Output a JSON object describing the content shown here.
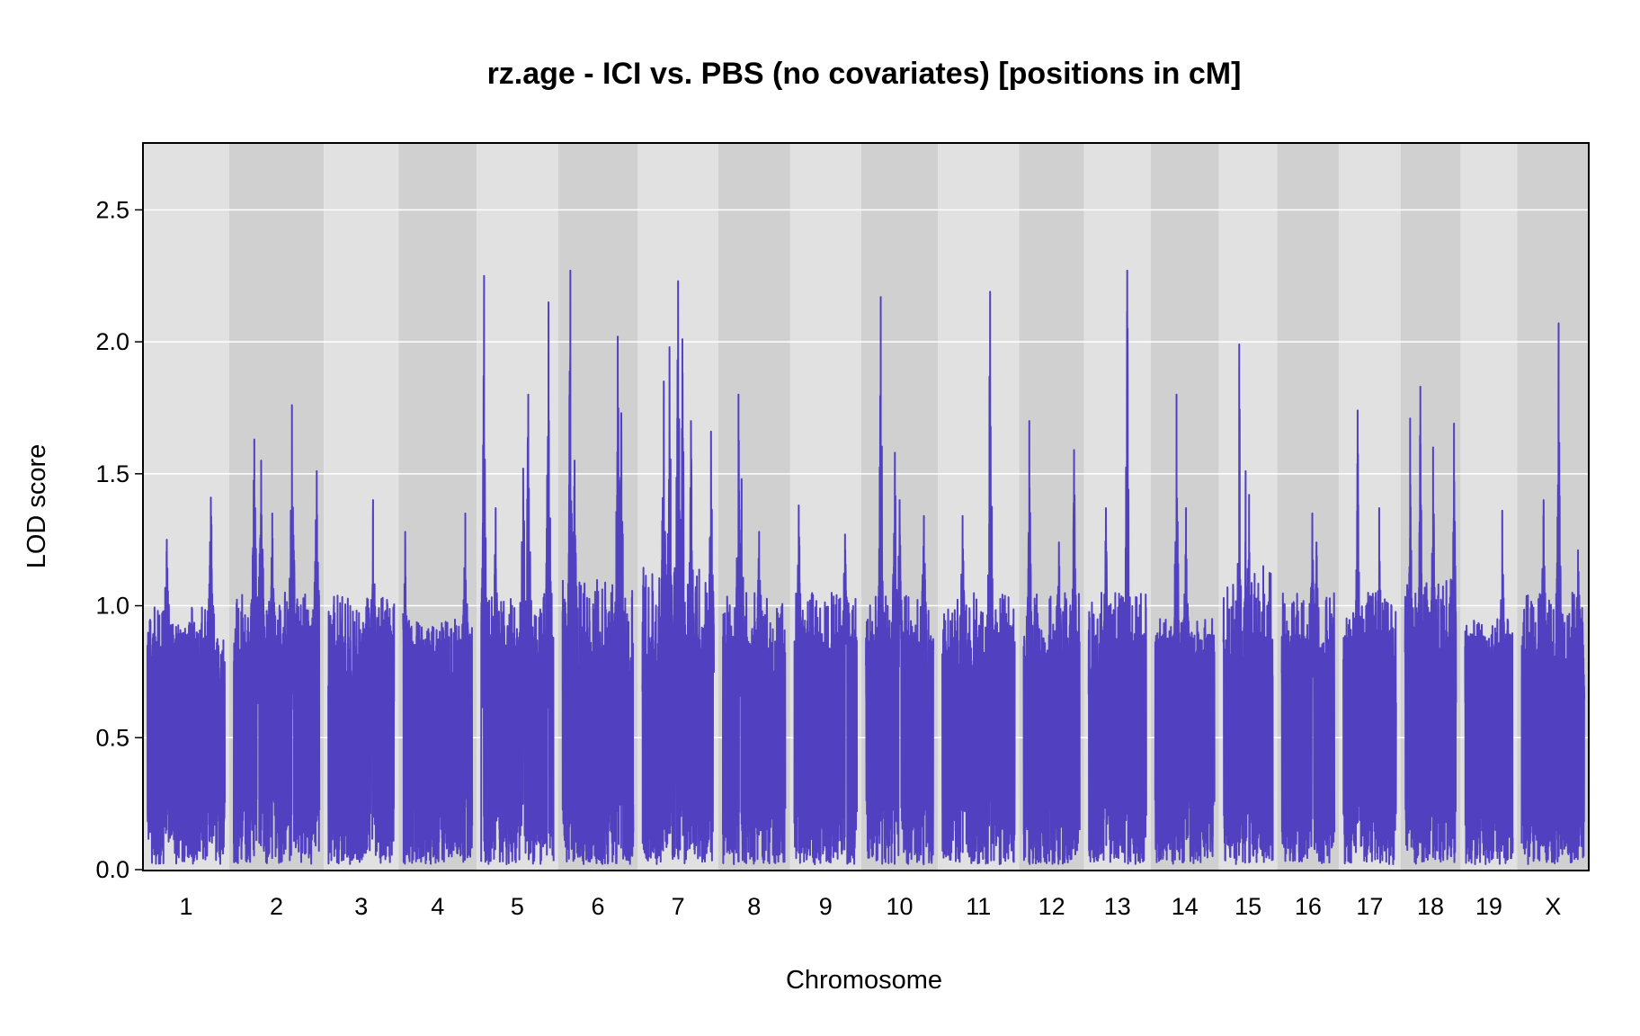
{
  "chart_data": {
    "type": "line",
    "title": "rz.age - ICI vs. PBS (no covariates) [positions in cM]",
    "xlabel": "Chromosome",
    "ylabel": "LOD score",
    "ylim": [
      0,
      2.75
    ],
    "yticks": [
      "0.0",
      "0.5",
      "1.0",
      "1.5",
      "2.0",
      "2.5"
    ],
    "grid": true,
    "legend": "none",
    "colors": {
      "line": "#5140c0",
      "band_light": "#e1e1e1",
      "band_dark": "#d0d0d0",
      "grid": "#ffffff",
      "frame": "#000000"
    },
    "chromosomes": [
      {
        "label": "1",
        "length_cM": 94,
        "baseline": 0.9,
        "peaks": [
          [
            0.25,
            1.25
          ],
          [
            0.82,
            1.41
          ]
        ]
      },
      {
        "label": "2",
        "length_cM": 104,
        "baseline": 0.95,
        "peaks": [
          [
            0.24,
            1.63
          ],
          [
            0.32,
            1.55
          ],
          [
            0.45,
            1.35
          ],
          [
            0.68,
            1.76
          ],
          [
            0.97,
            1.51
          ]
        ]
      },
      {
        "label": "3",
        "length_cM": 80,
        "baseline": 0.95,
        "peaks": [
          [
            0.68,
            1.4
          ]
        ]
      },
      {
        "label": "4",
        "length_cM": 84,
        "baseline": 0.85,
        "peaks": [
          [
            0.03,
            1.28
          ],
          [
            0.9,
            1.35
          ]
        ]
      },
      {
        "label": "5",
        "length_cM": 88,
        "baseline": 0.95,
        "peaks": [
          [
            0.04,
            2.25
          ],
          [
            0.2,
            1.37
          ],
          [
            0.58,
            1.52
          ],
          [
            0.65,
            1.8
          ],
          [
            0.93,
            2.15
          ]
        ]
      },
      {
        "label": "6",
        "length_cM": 86,
        "baseline": 1.0,
        "peaks": [
          [
            0.11,
            2.27
          ],
          [
            0.17,
            1.55
          ],
          [
            0.78,
            2.02
          ],
          [
            0.83,
            1.73
          ]
        ]
      },
      {
        "label": "7",
        "length_cM": 87,
        "baseline": 1.05,
        "peaks": [
          [
            0.3,
            1.85
          ],
          [
            0.38,
            1.98
          ],
          [
            0.5,
            2.23
          ],
          [
            0.56,
            2.01
          ],
          [
            0.68,
            1.7
          ],
          [
            0.96,
            1.66
          ]
        ]
      },
      {
        "label": "8",
        "length_cM": 76,
        "baseline": 0.95,
        "peaks": [
          [
            0.25,
            1.8
          ],
          [
            0.3,
            1.48
          ],
          [
            0.58,
            1.28
          ]
        ]
      },
      {
        "label": "9",
        "length_cM": 76,
        "baseline": 0.95,
        "peaks": [
          [
            0.07,
            1.38
          ],
          [
            0.81,
            1.27
          ]
        ]
      },
      {
        "label": "10",
        "length_cM": 82,
        "baseline": 0.95,
        "peaks": [
          [
            0.22,
            2.17
          ],
          [
            0.43,
            1.58
          ],
          [
            0.5,
            1.4
          ],
          [
            0.86,
            1.34
          ]
        ]
      },
      {
        "label": "11",
        "length_cM": 88,
        "baseline": 0.95,
        "peaks": [
          [
            0.28,
            1.34
          ],
          [
            0.66,
            2.19
          ]
        ]
      },
      {
        "label": "12",
        "length_cM": 68,
        "baseline": 0.95,
        "peaks": [
          [
            0.1,
            1.7
          ],
          [
            0.63,
            1.24
          ],
          [
            0.9,
            1.59
          ]
        ]
      },
      {
        "label": "13",
        "length_cM": 70,
        "baseline": 0.95,
        "peaks": [
          [
            0.3,
            1.37
          ],
          [
            0.67,
            2.27
          ]
        ]
      },
      {
        "label": "14",
        "length_cM": 72,
        "baseline": 0.85,
        "peaks": [
          [
            0.36,
            1.8
          ],
          [
            0.52,
            1.37
          ]
        ]
      },
      {
        "label": "15",
        "length_cM": 60,
        "baseline": 1.05,
        "peaks": [
          [
            0.32,
            1.99
          ],
          [
            0.45,
            1.51
          ],
          [
            0.52,
            1.42
          ]
        ]
      },
      {
        "label": "16",
        "length_cM": 64,
        "baseline": 0.95,
        "peaks": [
          [
            0.58,
            1.35
          ],
          [
            0.66,
            1.24
          ]
        ]
      },
      {
        "label": "17",
        "length_cM": 64,
        "baseline": 0.95,
        "peaks": [
          [
            0.27,
            1.74
          ],
          [
            0.68,
            1.37
          ]
        ]
      },
      {
        "label": "18",
        "length_cM": 62,
        "baseline": 1.0,
        "peaks": [
          [
            0.1,
            1.71
          ],
          [
            0.3,
            1.83
          ],
          [
            0.55,
            1.6
          ],
          [
            0.96,
            1.69
          ]
        ]
      },
      {
        "label": "19",
        "length_cM": 58,
        "baseline": 0.85,
        "peaks": [
          [
            0.78,
            1.36
          ]
        ]
      },
      {
        "label": "X",
        "length_cM": 76,
        "baseline": 0.95,
        "peaks": [
          [
            0.35,
            1.4
          ],
          [
            0.59,
            2.07
          ],
          [
            0.9,
            1.21
          ]
        ]
      }
    ]
  }
}
